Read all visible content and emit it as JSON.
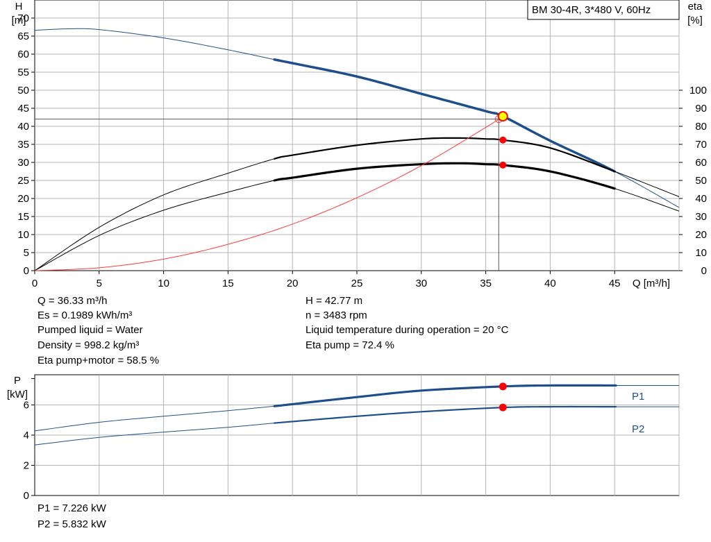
{
  "chart_data": [
    {
      "type": "line",
      "title": "BM 30-4R, 3*480 V, 60Hz",
      "xlabel": "Q [m³/h]",
      "ylabel_name": "H",
      "ylabel_unit": "[m]",
      "y2label_name": "eta",
      "y2label_unit": "[%]",
      "xlim": [
        0,
        50
      ],
      "ylim": [
        0,
        75
      ],
      "y2lim": [
        0,
        150
      ],
      "grid": true,
      "x_ticks": [
        0,
        5,
        10,
        15,
        20,
        25,
        30,
        35,
        40,
        45
      ],
      "y_ticks": [
        0,
        5,
        10,
        15,
        20,
        25,
        30,
        35,
        40,
        45,
        50,
        55,
        60,
        65,
        70
      ],
      "y2_ticks": [
        0,
        10,
        20,
        30,
        40,
        50,
        60,
        70,
        80,
        90,
        100
      ],
      "operating_point": {
        "Q": 36.33,
        "H": 42.77,
        "eta_pump": 72.4,
        "eta_pump_motor": 58.5
      },
      "series": [
        {
          "id": "head",
          "axis": "left",
          "color": "#1f4e8c",
          "valid_range": [
            18.6,
            45.1
          ],
          "x": [
            0,
            2.5,
            5,
            10,
            15,
            18.6,
            20,
            25,
            30,
            35,
            36.33,
            40,
            45,
            50
          ],
          "y": [
            66.6,
            67.0,
            66.8,
            64.5,
            61.2,
            58.5,
            57.5,
            53.8,
            49.0,
            44.2,
            42.77,
            36.0,
            27.5,
            17.5
          ]
        },
        {
          "id": "eta-pump",
          "axis": "right",
          "color": "#000000",
          "valid_range": [
            18.6,
            45.1
          ],
          "x": [
            0,
            5,
            10,
            15,
            18.6,
            20,
            25,
            30,
            33,
            35,
            36.33,
            40,
            45,
            50
          ],
          "y": [
            0,
            24,
            42,
            54,
            62,
            64,
            69.5,
            73,
            73.5,
            73,
            72.4,
            68,
            55,
            41
          ]
        },
        {
          "id": "eta-pump-motor",
          "axis": "right",
          "color": "#000000",
          "valid_range": [
            18.6,
            45.1
          ],
          "x": [
            0,
            5,
            10,
            15,
            18.6,
            20,
            25,
            30,
            33,
            35,
            36.33,
            40,
            45,
            50
          ],
          "y": [
            0,
            19.5,
            33.5,
            43.5,
            50,
            51.5,
            56.5,
            59,
            59.5,
            59,
            58.5,
            55,
            45.5,
            33
          ]
        },
        {
          "id": "system-curve",
          "axis": "left",
          "color": "#ff3b3b",
          "x": [
            0,
            5,
            10,
            15,
            20,
            25,
            30,
            35,
            36.33
          ],
          "y": [
            0,
            0.8,
            3.2,
            7.3,
            12.9,
            20.2,
            29.1,
            39.7,
            42.77
          ]
        }
      ]
    },
    {
      "type": "line",
      "xlim": [
        0,
        50
      ],
      "ylabel_name": "P",
      "ylabel_unit": "[kW]",
      "ylim": [
        0,
        8
      ],
      "y_ticks": [
        0,
        2,
        4,
        6
      ],
      "grid": true,
      "series": [
        {
          "name": "P1",
          "color": "#1f4e8c",
          "valid_range": [
            18.6,
            45.1
          ],
          "x": [
            0,
            5,
            10,
            15,
            18.6,
            20,
            25,
            30,
            36.33,
            40,
            45.1,
            50
          ],
          "y": [
            4.28,
            4.85,
            5.25,
            5.62,
            5.92,
            6.05,
            6.52,
            6.95,
            7.226,
            7.29,
            7.29,
            7.29
          ]
        },
        {
          "name": "P2",
          "color": "#1f4e8c",
          "valid_range": [
            18.6,
            45.1
          ],
          "x": [
            0,
            5,
            10,
            15,
            18.6,
            20,
            25,
            30,
            36.33,
            40,
            45.1,
            50
          ],
          "y": [
            3.35,
            3.85,
            4.2,
            4.52,
            4.8,
            4.9,
            5.25,
            5.55,
            5.832,
            5.88,
            5.88,
            5.88
          ]
        }
      ]
    }
  ],
  "info_top": {
    "q": "Q = 36.33 m³/h",
    "es": "Es = 0.1989 kWh/m³",
    "liquid": "Pumped liquid = Water",
    "density": "Density = 998.2 kg/m³",
    "eta_pm": "Eta pump+motor = 58.5 %",
    "h": "H = 42.77 m",
    "n": "n = 3483 rpm",
    "temp": "Liquid temperature during operation = 20 °C",
    "eta_p": "Eta pump = 72.4 %"
  },
  "info_bottom": {
    "p1": "P1 = 7.226 kW",
    "p2": "P2 = 5.832 kW"
  },
  "colors": {
    "grid": "#b4b4b4",
    "curve_blue": "#1f4e8c",
    "curve_black": "#000000",
    "system_red": "#ff3b3b",
    "marker_red": "#ff0000",
    "marker_yellow": "#ffff00"
  }
}
